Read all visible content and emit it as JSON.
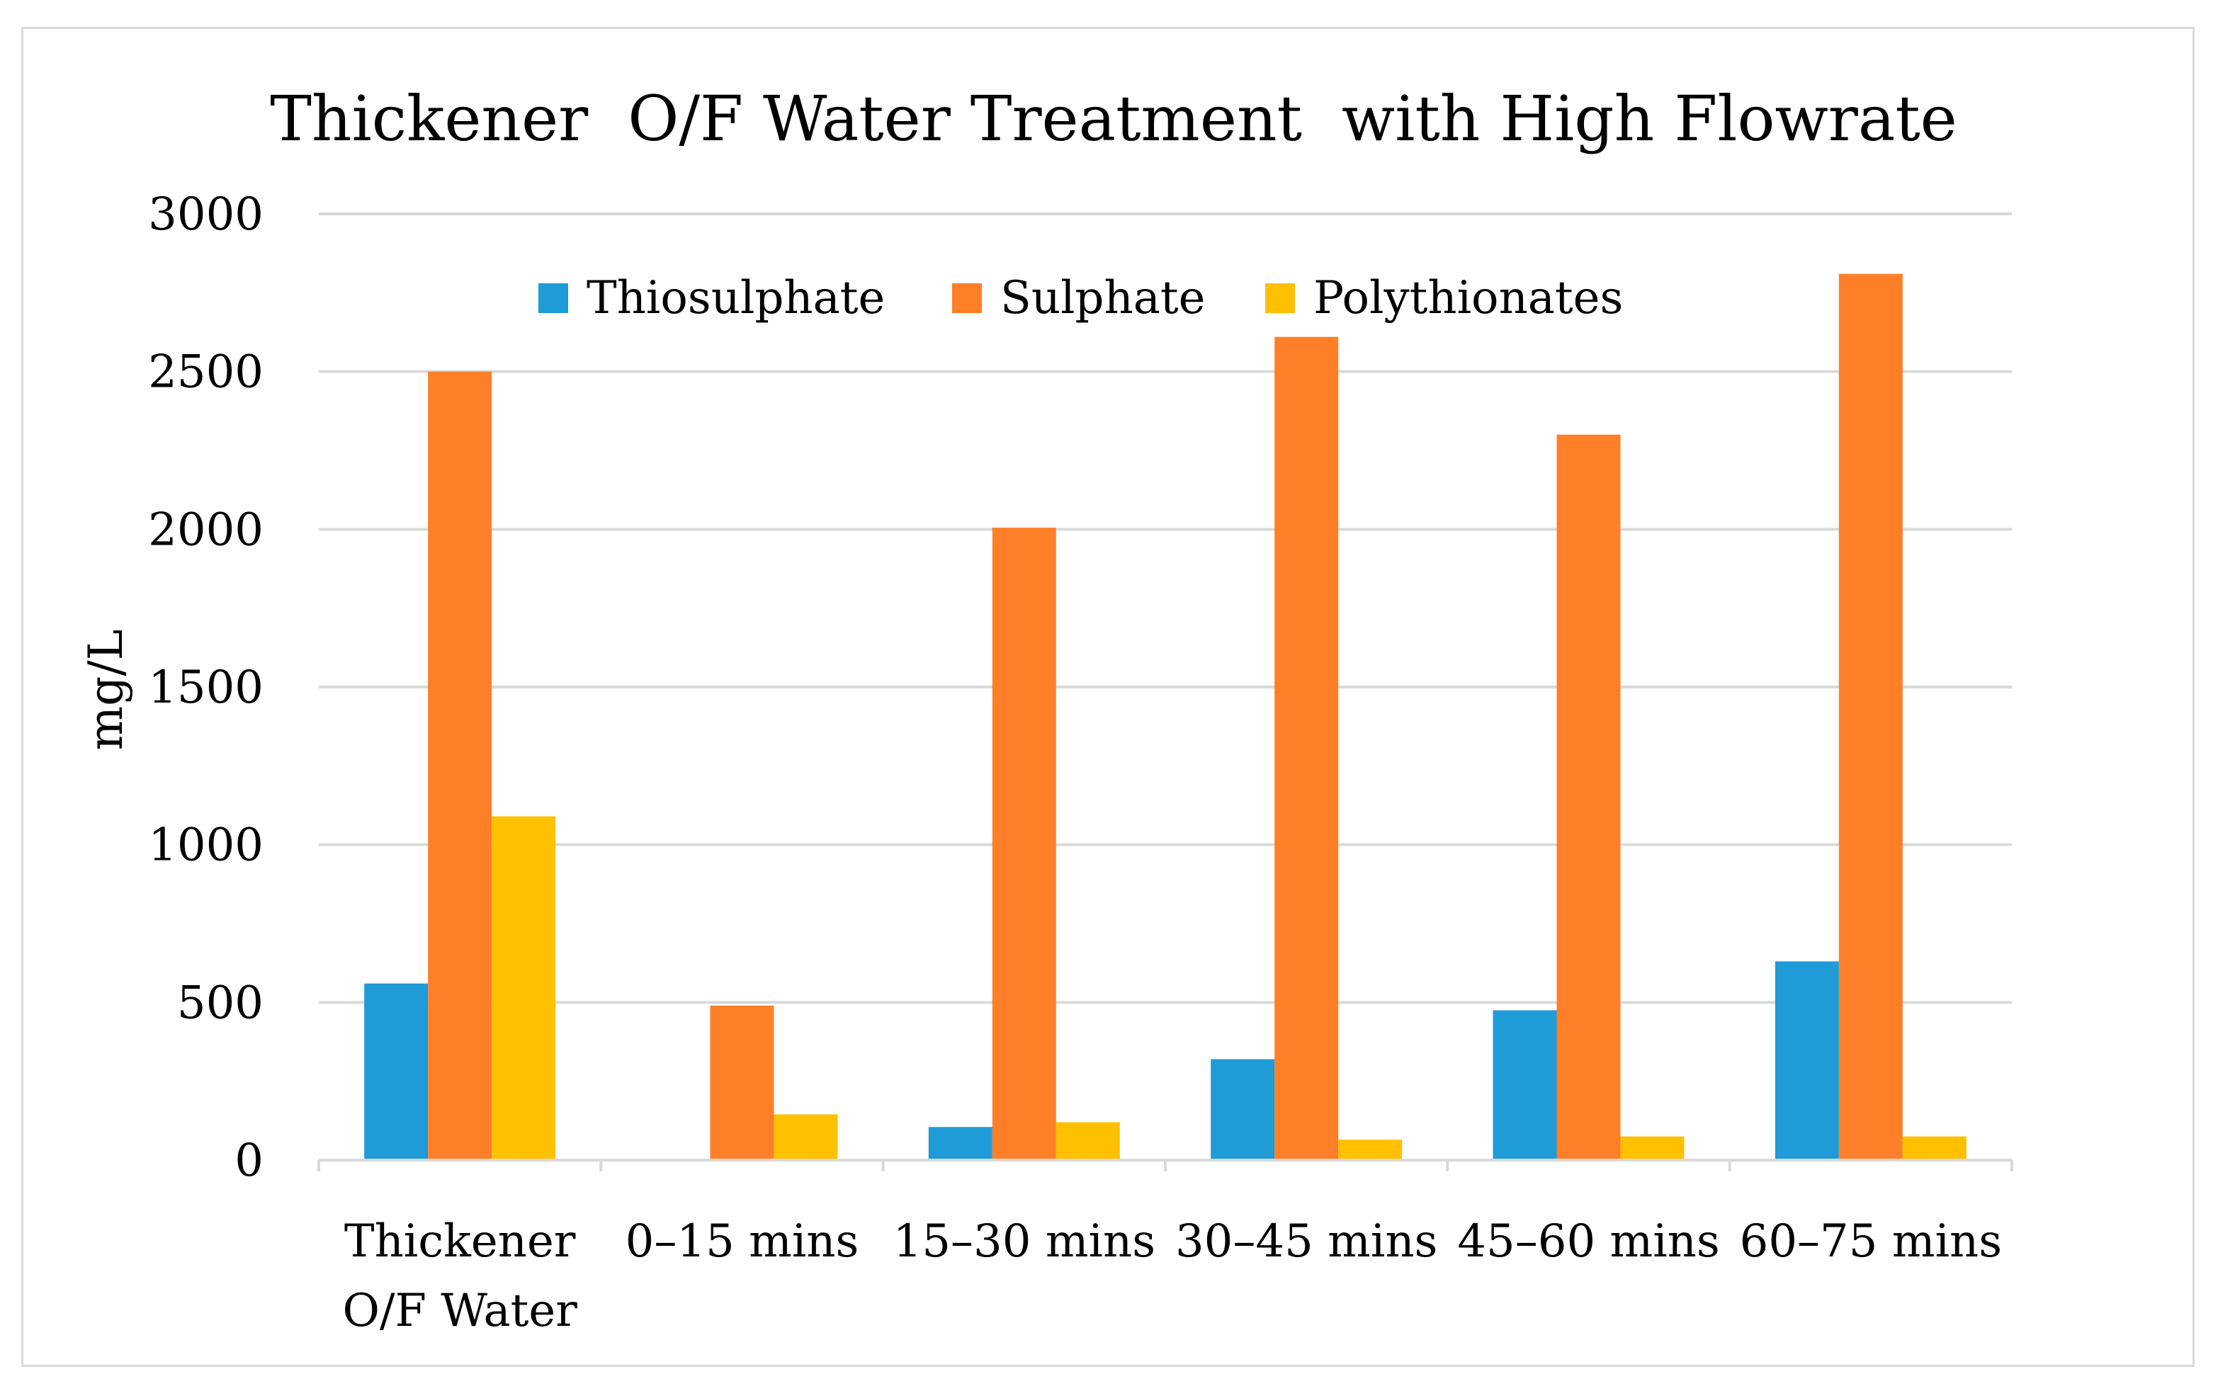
{
  "chart_data": {
    "type": "bar",
    "title": "Thickener  O/F Water Treatment  with High Flowrate",
    "xlabel": "",
    "ylabel": "mg/L",
    "ylim": [
      0,
      3000
    ],
    "yticks": [
      0,
      500,
      1000,
      1500,
      2000,
      2500,
      3000
    ],
    "ytick_labels": [
      "0",
      "500",
      "1000",
      "1500",
      "2000",
      "2500",
      "3000"
    ],
    "grid": true,
    "legend_position": "top",
    "categories": [
      [
        "Thickener",
        "O/F Water"
      ],
      [
        "0–15 mins"
      ],
      [
        "15–30 mins"
      ],
      [
        "30–45 mins"
      ],
      [
        "45–60 mins"
      ],
      [
        "60–75 mins"
      ]
    ],
    "series": [
      {
        "name": "Thiosulphate",
        "color": "#1f9bd7",
        "values": [
          560,
          0,
          105,
          320,
          475,
          630
        ]
      },
      {
        "name": "Sulphate",
        "color": "#fe7f27",
        "values": [
          2500,
          490,
          2005,
          2610,
          2300,
          2810
        ]
      },
      {
        "name": "Polythionates",
        "color": "#ffc000",
        "values": [
          1090,
          145,
          120,
          65,
          75,
          75
        ]
      }
    ]
  },
  "colors": {
    "grid": "#d9d9d9",
    "axis": "#d9d9d9",
    "frame": "#d9d9d9"
  }
}
